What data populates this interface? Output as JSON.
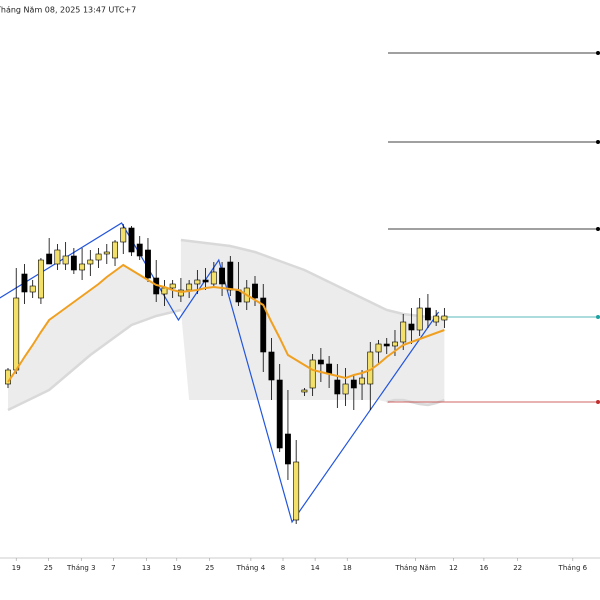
{
  "chart_data": {
    "type": "candlestick",
    "title": "Tháng Năm 08, 2025 13:47 UTC+7",
    "xlim": [
      -0.97,
      71.9
    ],
    "ylim": [
      0,
      560
    ],
    "xticks": [
      {
        "value": 1.0,
        "label": "19"
      },
      {
        "value": 4.9,
        "label": "25"
      },
      {
        "value": 8.9,
        "label": "Tháng 3"
      },
      {
        "value": 12.8,
        "label": "7"
      },
      {
        "value": 16.8,
        "label": "13"
      },
      {
        "value": 20.5,
        "label": "19"
      },
      {
        "value": 24.5,
        "label": "25"
      },
      {
        "value": 29.5,
        "label": "Tháng 4"
      },
      {
        "value": 33.4,
        "label": "8"
      },
      {
        "value": 37.3,
        "label": "14"
      },
      {
        "value": 41.2,
        "label": "18"
      },
      {
        "value": 49.5,
        "label": "Tháng Năm"
      },
      {
        "value": 54.1,
        "label": "12"
      },
      {
        "value": 57.8,
        "label": "16"
      },
      {
        "value": 61.9,
        "label": "22"
      },
      {
        "value": 68.6,
        "label": "Tháng 6"
      }
    ],
    "up_color": "#f3e06a",
    "down_color": "#000000",
    "ohlc": [
      [
        176,
        192,
        172,
        190
      ],
      [
        190,
        292,
        186,
        262
      ],
      [
        286,
        296,
        256,
        268
      ],
      [
        268,
        280,
        262,
        274
      ],
      [
        262,
        302,
        256,
        300
      ],
      [
        306,
        322,
        296,
        296
      ],
      [
        296,
        316,
        290,
        310
      ],
      [
        296,
        318,
        290,
        304
      ],
      [
        304,
        312,
        286,
        290
      ],
      [
        290,
        312,
        280,
        296
      ],
      [
        296,
        310,
        284,
        300
      ],
      [
        300,
        312,
        292,
        306
      ],
      [
        306,
        316,
        296,
        308
      ],
      [
        302,
        320,
        294,
        318
      ],
      [
        318,
        336,
        306,
        332
      ],
      [
        332,
        334,
        304,
        308
      ],
      [
        316,
        324,
        300,
        304
      ],
      [
        310,
        322,
        278,
        282
      ],
      [
        282,
        300,
        258,
        266
      ],
      [
        266,
        280,
        254,
        272
      ],
      [
        272,
        280,
        262,
        276
      ],
      [
        264,
        282,
        258,
        270
      ],
      [
        270,
        280,
        262,
        276
      ],
      [
        276,
        290,
        266,
        280
      ],
      [
        280,
        292,
        270,
        278
      ],
      [
        276,
        298,
        272,
        288
      ],
      [
        292,
        298,
        264,
        276
      ],
      [
        298,
        304,
        264,
        270
      ],
      [
        270,
        298,
        254,
        258
      ],
      [
        258,
        280,
        250,
        272
      ],
      [
        276,
        284,
        254,
        262
      ],
      [
        262,
        276,
        188,
        208
      ],
      [
        208,
        222,
        160,
        180
      ],
      [
        180,
        196,
        108,
        112
      ],
      [
        126,
        170,
        80,
        96
      ],
      [
        40,
        120,
        36,
        98
      ],
      [
        168,
        172,
        164,
        170
      ],
      [
        172,
        206,
        164,
        200
      ],
      [
        200,
        212,
        178,
        196
      ],
      [
        196,
        204,
        172,
        186
      ],
      [
        180,
        196,
        152,
        166
      ],
      [
        166,
        192,
        154,
        176
      ],
      [
        180,
        186,
        150,
        172
      ],
      [
        176,
        190,
        160,
        182
      ],
      [
        176,
        218,
        150,
        208
      ],
      [
        208,
        220,
        196,
        216
      ],
      [
        216,
        222,
        206,
        214
      ],
      [
        214,
        230,
        204,
        218
      ],
      [
        218,
        246,
        210,
        238
      ],
      [
        236,
        252,
        216,
        230
      ],
      [
        230,
        262,
        224,
        252
      ],
      [
        252,
        266,
        232,
        240
      ],
      [
        238,
        250,
        234,
        244
      ],
      [
        240,
        252,
        232,
        244
      ]
    ],
    "ma": {
      "color": "#f0a020",
      "values": [
        178,
        190,
        203,
        215,
        228,
        240,
        246,
        252,
        258,
        264,
        270,
        276,
        283,
        289,
        295,
        290,
        285,
        280,
        275,
        273,
        270,
        268,
        269,
        270,
        272,
        273,
        272,
        271,
        270,
        265,
        260,
        255,
        238,
        222,
        205,
        200,
        195,
        190,
        188,
        186,
        184,
        182,
        185,
        187,
        190,
        196,
        203,
        209,
        215,
        218,
        221,
        224,
        227,
        230
      ]
    },
    "band": {
      "color": "#d9d9d9",
      "upper": [
        null,
        null,
        null,
        null,
        null,
        null,
        null,
        null,
        null,
        null,
        null,
        null,
        null,
        null,
        null,
        null,
        null,
        null,
        null,
        null,
        null,
        320,
        319,
        318,
        317,
        316,
        315,
        314,
        312,
        310,
        308,
        305,
        302,
        299,
        296,
        293,
        290,
        286,
        282,
        278,
        274,
        270,
        266,
        262,
        258,
        254,
        250,
        248,
        246,
        245,
        244,
        243,
        242,
        242
      ],
      "lower": [
        150,
        154,
        158,
        162,
        166,
        170,
        177,
        184,
        191,
        198,
        205,
        211,
        217,
        223,
        229,
        235,
        238,
        241,
        244,
        246,
        248,
        250,
        160,
        160,
        160,
        160,
        160,
        160,
        160,
        160,
        160,
        160,
        160,
        160,
        160,
        160,
        160,
        160,
        160,
        160,
        160,
        160,
        160,
        160,
        160,
        160,
        158,
        160,
        160,
        158,
        156,
        155,
        157,
        160
      ]
    },
    "zigzag": {
      "color": "#2255dd",
      "x": [
        -1,
        13.8,
        20.7,
        25.6,
        34.5,
        52.3
      ],
      "y": [
        262,
        337,
        240,
        300,
        38,
        248
      ]
    },
    "levels": [
      {
        "value": 507,
        "color": "#000000"
      },
      {
        "value": 418,
        "color": "#000000"
      },
      {
        "value": 331,
        "color": "#000000"
      },
      {
        "value": 243,
        "color": "#20a0a0"
      },
      {
        "value": 158,
        "color": "#c03030"
      }
    ]
  }
}
